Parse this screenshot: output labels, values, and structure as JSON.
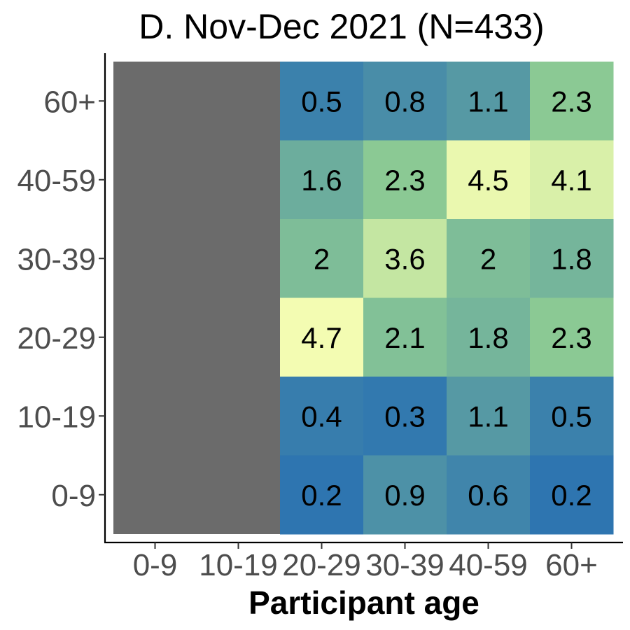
{
  "chart_data": {
    "type": "heatmap",
    "title": "D. Nov-Dec 2021 (N=433)",
    "xlabel": "Participant age",
    "ylabel": "",
    "x_categories": [
      "0-9",
      "10-19",
      "20-29",
      "30-39",
      "40-59",
      "60+"
    ],
    "y_categories": [
      "0-9",
      "10-19",
      "20-29",
      "30-39",
      "40-59",
      "60+"
    ],
    "missing_color": "#6b6b6b",
    "missing_x_categories": [
      "0-9",
      "10-19"
    ],
    "colorscale": {
      "low": "#2e75b0",
      "mid": "#92cf92",
      "high": "#f3fcb2",
      "domain": [
        0.2,
        4.7
      ]
    },
    "cells": [
      {
        "x": "20-29",
        "y": "60+",
        "value": 0.5,
        "label": "0.5"
      },
      {
        "x": "30-39",
        "y": "60+",
        "value": 0.8,
        "label": "0.8"
      },
      {
        "x": "40-59",
        "y": "60+",
        "value": 1.1,
        "label": "1.1"
      },
      {
        "x": "60+",
        "y": "60+",
        "value": 2.3,
        "label": "2.3"
      },
      {
        "x": "20-29",
        "y": "40-59",
        "value": 1.6,
        "label": "1.6"
      },
      {
        "x": "30-39",
        "y": "40-59",
        "value": 2.3,
        "label": "2.3"
      },
      {
        "x": "40-59",
        "y": "40-59",
        "value": 4.5,
        "label": "4.5"
      },
      {
        "x": "60+",
        "y": "40-59",
        "value": 4.1,
        "label": "4.1"
      },
      {
        "x": "20-29",
        "y": "30-39",
        "value": 2.0,
        "label": "2"
      },
      {
        "x": "30-39",
        "y": "30-39",
        "value": 3.6,
        "label": "3.6"
      },
      {
        "x": "40-59",
        "y": "30-39",
        "value": 2.0,
        "label": "2"
      },
      {
        "x": "60+",
        "y": "30-39",
        "value": 1.8,
        "label": "1.8"
      },
      {
        "x": "20-29",
        "y": "20-29",
        "value": 4.7,
        "label": "4.7"
      },
      {
        "x": "30-39",
        "y": "20-29",
        "value": 2.1,
        "label": "2.1"
      },
      {
        "x": "40-59",
        "y": "20-29",
        "value": 1.8,
        "label": "1.8"
      },
      {
        "x": "60+",
        "y": "20-29",
        "value": 2.3,
        "label": "2.3"
      },
      {
        "x": "20-29",
        "y": "10-19",
        "value": 0.4,
        "label": "0.4"
      },
      {
        "x": "30-39",
        "y": "10-19",
        "value": 0.3,
        "label": "0.3"
      },
      {
        "x": "40-59",
        "y": "10-19",
        "value": 1.1,
        "label": "1.1"
      },
      {
        "x": "60+",
        "y": "10-19",
        "value": 0.5,
        "label": "0.5"
      },
      {
        "x": "20-29",
        "y": "0-9",
        "value": 0.2,
        "label": "0.2"
      },
      {
        "x": "30-39",
        "y": "0-9",
        "value": 0.9,
        "label": "0.9"
      },
      {
        "x": "40-59",
        "y": "0-9",
        "value": 0.6,
        "label": "0.6"
      },
      {
        "x": "60+",
        "y": "0-9",
        "value": 0.2,
        "label": "0.2"
      }
    ],
    "legend": "none",
    "grid": false
  }
}
